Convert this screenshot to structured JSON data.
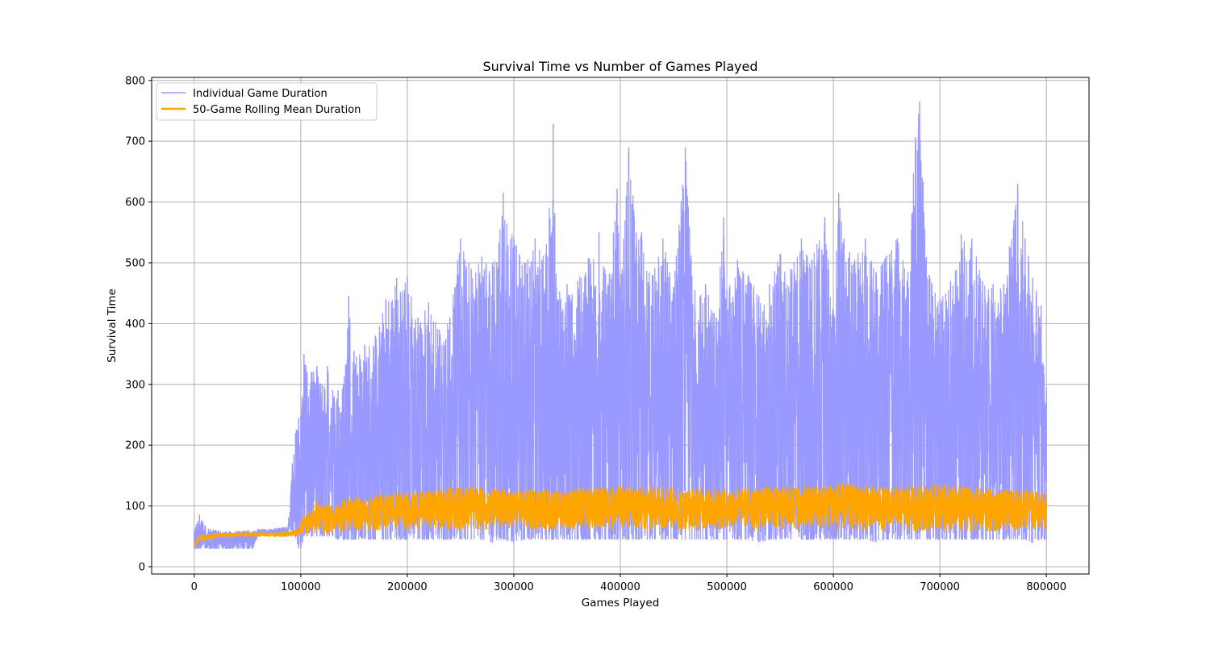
{
  "chart_data": {
    "type": "line",
    "title": "Survival Time vs Number of Games Played",
    "xlabel": "Games Played",
    "ylabel": "Survival Time",
    "xlim": [
      -40000,
      840000
    ],
    "ylim": [
      -12,
      805
    ],
    "x_ticks": [
      0,
      100000,
      200000,
      300000,
      400000,
      500000,
      600000,
      700000,
      800000
    ],
    "y_ticks": [
      0,
      100,
      200,
      300,
      400,
      500,
      600,
      700,
      800
    ],
    "grid": true,
    "legend_position": "top-left",
    "series": [
      {
        "name": "Individual Game Duration",
        "color": "#9999ff",
        "kind": "range",
        "x": [
          0,
          2000,
          5000,
          10000,
          15000,
          20000,
          30000,
          40000,
          50000,
          55000,
          60000,
          70000,
          80000,
          88000,
          92000,
          95000,
          98000,
          100000,
          103000,
          106000,
          110000,
          115000,
          120000,
          125000,
          130000,
          135000,
          140000,
          145000,
          150000,
          160000,
          170000,
          180000,
          190000,
          200000,
          210000,
          220000,
          230000,
          240000,
          250000,
          260000,
          270000,
          280000,
          290000,
          300000,
          310000,
          320000,
          330000,
          337000,
          340000,
          350000,
          360000,
          370000,
          380000,
          390000,
          397000,
          400000,
          408000,
          415000,
          420000,
          430000,
          440000,
          450000,
          461000,
          470000,
          480000,
          490000,
          497000,
          500000,
          510000,
          520000,
          530000,
          540000,
          550000,
          560000,
          570000,
          580000,
          592000,
          600000,
          605000,
          610000,
          620000,
          630000,
          640000,
          650000,
          660000,
          670000,
          677000,
          681000,
          690000,
          700000,
          710000,
          720000,
          730000,
          740000,
          750000,
          760000,
          773000,
          780000,
          787000,
          795000,
          800000
        ],
        "low": [
          30,
          30,
          30,
          30,
          30,
          30,
          30,
          30,
          30,
          30,
          52,
          52,
          52,
          52,
          52,
          50,
          30,
          30,
          50,
          50,
          50,
          50,
          50,
          50,
          50,
          45,
          45,
          45,
          45,
          45,
          45,
          45,
          45,
          45,
          45,
          45,
          45,
          45,
          45,
          45,
          45,
          40,
          45,
          40,
          45,
          45,
          45,
          45,
          45,
          45,
          45,
          45,
          45,
          45,
          45,
          45,
          45,
          45,
          45,
          45,
          45,
          45,
          45,
          45,
          45,
          45,
          45,
          45,
          45,
          45,
          40,
          45,
          45,
          45,
          45,
          45,
          45,
          45,
          45,
          45,
          45,
          45,
          40,
          45,
          45,
          45,
          45,
          45,
          45,
          45,
          45,
          45,
          45,
          45,
          45,
          45,
          45,
          45,
          40,
          45,
          45
        ],
        "high": [
          58,
          70,
          86,
          68,
          62,
          60,
          58,
          58,
          60,
          58,
          62,
          62,
          64,
          66,
          170,
          220,
          245,
          248,
          350,
          320,
          320,
          330,
          300,
          330,
          290,
          290,
          300,
          445,
          355,
          365,
          380,
          440,
          475,
          478,
          410,
          435,
          390,
          410,
          540,
          490,
          510,
          500,
          615,
          540,
          500,
          540,
          515,
          728,
          460,
          465,
          470,
          508,
          550,
          480,
          622,
          460,
          690,
          550,
          550,
          480,
          540,
          460,
          690,
          455,
          465,
          410,
          575,
          455,
          505,
          480,
          445,
          465,
          515,
          490,
          540,
          505,
          575,
          420,
          615,
          540,
          505,
          540,
          485,
          512,
          540,
          485,
          707,
          765,
          480,
          440,
          470,
          547,
          540,
          470,
          465,
          465,
          630,
          540,
          475,
          430,
          295
        ]
      },
      {
        "name": "50-Game Rolling Mean Duration",
        "color": "#ffa500",
        "kind": "range",
        "x": [
          0,
          3000,
          6000,
          10000,
          15000,
          20000,
          30000,
          40000,
          50000,
          60000,
          70000,
          80000,
          88000,
          92000,
          95000,
          98000,
          100000,
          105000,
          110000,
          115000,
          120000,
          125000,
          130000,
          140000,
          150000,
          160000,
          170000,
          180000,
          190000,
          200000,
          220000,
          240000,
          260000,
          280000,
          300000,
          320000,
          340000,
          360000,
          380000,
          400000,
          420000,
          440000,
          460000,
          480000,
          500000,
          520000,
          540000,
          560000,
          580000,
          600000,
          620000,
          640000,
          660000,
          680000,
          700000,
          720000,
          740000,
          760000,
          780000,
          800000
        ],
        "low": [
          33,
          40,
          44,
          43,
          44,
          48,
          50,
          50,
          50,
          50,
          50,
          50,
          50,
          51,
          51,
          52,
          54,
          55,
          56,
          56,
          55,
          55,
          58,
          58,
          60,
          60,
          60,
          62,
          62,
          62,
          62,
          62,
          62,
          62,
          62,
          62,
          62,
          62,
          62,
          62,
          62,
          62,
          62,
          62,
          62,
          62,
          62,
          62,
          62,
          62,
          62,
          60,
          62,
          57,
          62,
          58,
          55,
          62,
          62,
          62
        ],
        "high": [
          40,
          48,
          52,
          53,
          54,
          55,
          55,
          56,
          56,
          56,
          56,
          56,
          57,
          58,
          60,
          62,
          75,
          85,
          95,
          108,
          100,
          104,
          98,
          110,
          115,
          112,
          118,
          120,
          122,
          122,
          125,
          130,
          132,
          128,
          126,
          128,
          125,
          128,
          130,
          133,
          130,
          135,
          128,
          130,
          128,
          130,
          132,
          133,
          133,
          138,
          135,
          132,
          130,
          133,
          135,
          132,
          128,
          125,
          128,
          120
        ]
      }
    ]
  }
}
